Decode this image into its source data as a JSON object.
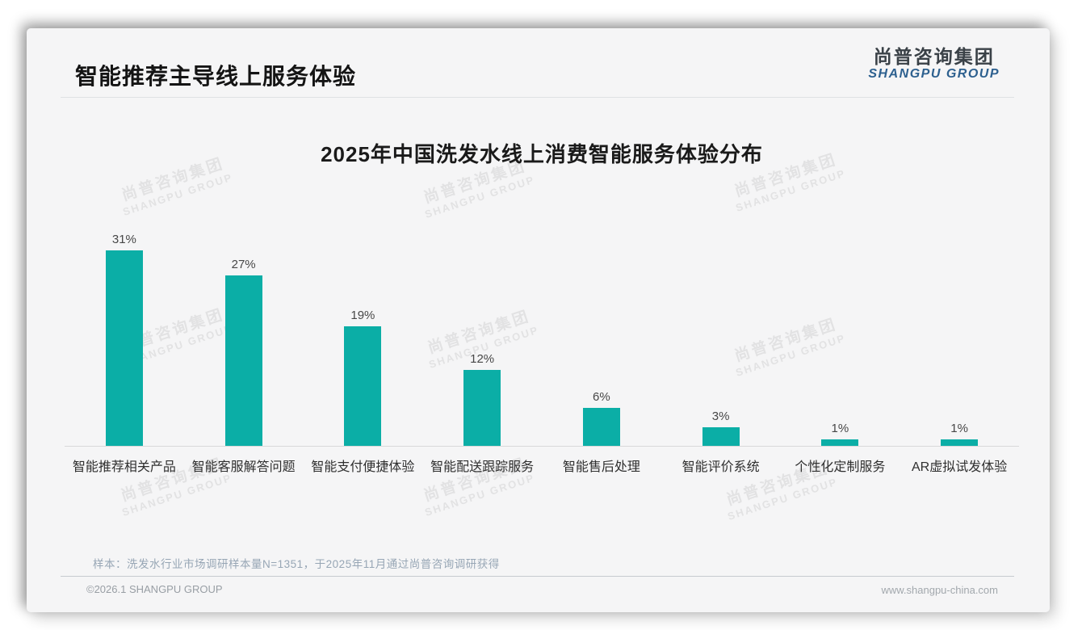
{
  "page": {
    "title": "智能推荐主导线上服务体验",
    "logo": {
      "cn": "尚普咨询集团",
      "en": "SHANGPU GROUP"
    },
    "watermark": {
      "cn": "尚普咨询集团",
      "en": "SHANGPU GROUP"
    },
    "note": "样本：洗发水行业市场调研样本量N=1351，于2025年11月通过尚普咨询调研获得",
    "footer": {
      "left": "©2026.1 SHANGPU GROUP",
      "right": "www.shangpu-china.com"
    }
  },
  "chart_data": {
    "type": "bar",
    "title": "2025年中国洗发水线上消费智能服务体验分布",
    "categories": [
      "智能推荐相关产品",
      "智能客服解答问题",
      "智能支付便捷体验",
      "智能配送跟踪服务",
      "智能售后处理",
      "智能评价系统",
      "个性化定制服务",
      "AR虚拟试发体验"
    ],
    "values": [
      31,
      27,
      19,
      12,
      6,
      3,
      1,
      1
    ],
    "unit": "%",
    "bar_color": "#0baea6",
    "value_label_color": "#474747",
    "ylim": [
      0,
      33
    ],
    "grid": false,
    "legend": false,
    "data_labels": true
  }
}
